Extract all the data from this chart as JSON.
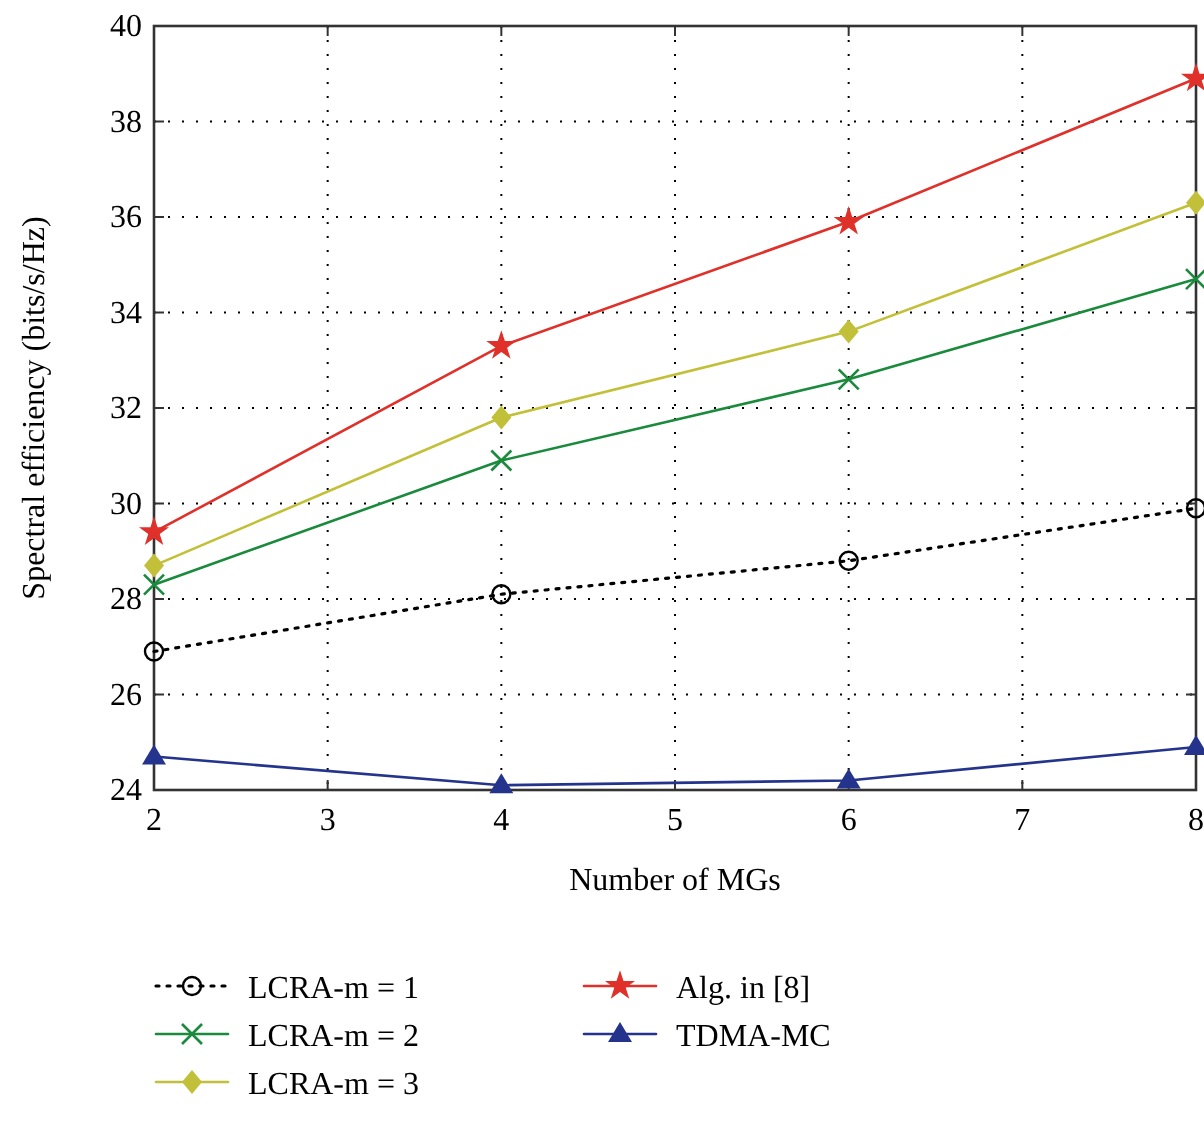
{
  "chart_data": {
    "type": "line",
    "xlabel": "Number of MGs",
    "ylabel": "Spectral efficiency (bits/s/Hz)",
    "x": [
      2,
      4,
      6,
      8
    ],
    "xlim": [
      2,
      8
    ],
    "xticks": [
      2,
      3,
      4,
      5,
      6,
      7,
      8
    ],
    "ylim": [
      24,
      40
    ],
    "yticks": [
      24,
      26,
      28,
      30,
      32,
      34,
      36,
      38,
      40
    ],
    "grid": true,
    "legend": "bottom",
    "series": [
      {
        "name": "LCRA-m = 1",
        "color": "#000000",
        "marker": "circle",
        "line_style": "dotted",
        "values": [
          26.9,
          28.1,
          28.8,
          29.9
        ]
      },
      {
        "name": "LCRA-m = 2",
        "color": "#1a8a3c",
        "marker": "cross",
        "line_style": "solid",
        "values": [
          28.3,
          30.9,
          32.6,
          34.7
        ]
      },
      {
        "name": "LCRA-m = 3",
        "color": "#c2c038",
        "marker": "diamond",
        "line_style": "solid",
        "values": [
          28.7,
          31.8,
          33.6,
          36.3
        ]
      },
      {
        "name": "Alg. in [8]",
        "color": "#e0302a",
        "marker": "star",
        "line_style": "solid",
        "values": [
          29.4,
          33.3,
          35.9,
          38.9
        ]
      },
      {
        "name": "TDMA-MC",
        "color": "#24348c",
        "marker": "triangle",
        "line_style": "solid",
        "values": [
          24.7,
          24.1,
          24.2,
          24.9
        ]
      }
    ]
  }
}
